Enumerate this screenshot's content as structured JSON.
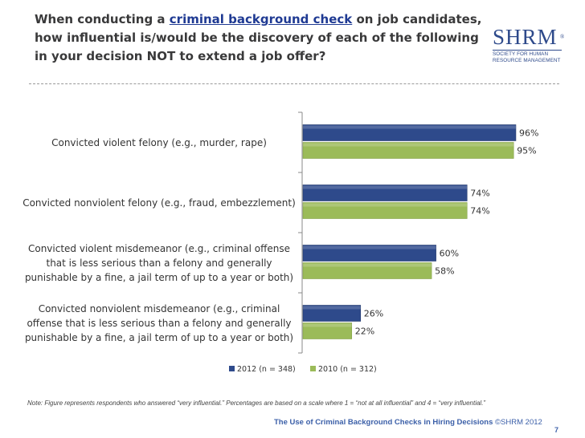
{
  "slide": {
    "title_pre": "When conducting a ",
    "title_highlight": "criminal background check",
    "title_post": " on job candidates, how influential is/would be the discovery of each of the following in your decision NOT to extend a job offer?",
    "note": "Note: Figure represents respondents who answered “very influential.” Percentages are based on a scale where 1 = “not at all influential” and 4 = “very influential.”",
    "footer_text": "The Use of Criminal Background Checks in Hiring Decisions ",
    "footer_copyright": "©SHRM 2012",
    "page_number": "7"
  },
  "logo": {
    "mark": "SHRM",
    "registered": "®",
    "tagline": "SOCIETY FOR HUMAN RESOURCE MANAGEMENT"
  },
  "chart_data": {
    "type": "bar",
    "orientation": "horizontal",
    "categories": [
      "Convicted violent felony (e.g., murder, rape)",
      "Convicted nonviolent felony (e.g., fraud, embezzlement)",
      "Convicted violent misdemeanor (e.g., criminal offense that is less serious than a felony and generally punishable by a fine, a jail term of up to a year or both)",
      "Convicted nonviolent misdemeanor (e.g., criminal offense that is less serious than a felony and generally punishable by a fine, a jail term of up to a year or both)"
    ],
    "series": [
      {
        "name": "2012 (n = 348)",
        "values": [
          96,
          74,
          60,
          26
        ],
        "labels": [
          "96%",
          "74%",
          "60%",
          "26%"
        ],
        "color": "#2e4a8b"
      },
      {
        "name": "2010 (n = 312)",
        "values": [
          95,
          74,
          58,
          22
        ],
        "labels": [
          "95%",
          "74%",
          "58%",
          "22%"
        ],
        "color": "#9bbb59"
      }
    ],
    "xlim": [
      0,
      100
    ],
    "grid": false,
    "legend_position": "bottom"
  }
}
